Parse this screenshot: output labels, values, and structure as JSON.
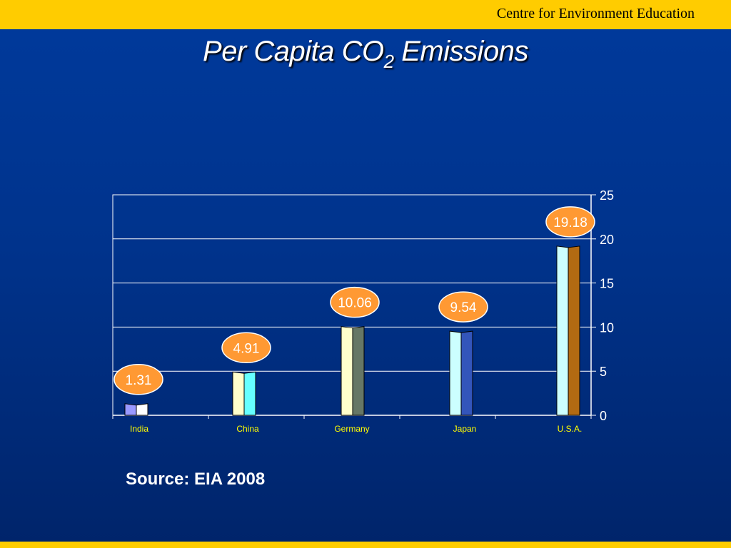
{
  "header": {
    "organization": "Centre for Environment Education"
  },
  "title": {
    "main": "Per Capita CO",
    "subscript": "2",
    "suffix": " Emissions"
  },
  "source": "Source: EIA 2008",
  "chart_data": {
    "type": "bar",
    "categories": [
      "India",
      "China",
      "Germany",
      "Japan",
      "U.S.A."
    ],
    "series": [
      {
        "values": [
          1.31,
          4.91,
          10.06,
          9.54,
          19.18
        ]
      }
    ],
    "data_labels": [
      "1.31",
      "4.91",
      "10.06",
      "9.54",
      "19.18"
    ],
    "ylim": [
      0,
      25
    ],
    "yticks": [
      0,
      5,
      10,
      15,
      20,
      25
    ],
    "y_axis_position": "right",
    "grid": true,
    "legend": "none",
    "colors": {
      "India": [
        "#9999ff",
        "#ffffff"
      ],
      "China": [
        "#ffffcc",
        "#66ffff"
      ],
      "Germany": [
        "#ffffcc",
        "#667766"
      ],
      "Japan": [
        "#ccffff",
        "#3355bb"
      ],
      "U.S.A.": [
        "#ccffff",
        "#b26a12"
      ],
      "label_bubble": "#ff9933",
      "category_label": "#ffff00",
      "plot_background": "#ffffff",
      "gridline": "#000000"
    }
  }
}
